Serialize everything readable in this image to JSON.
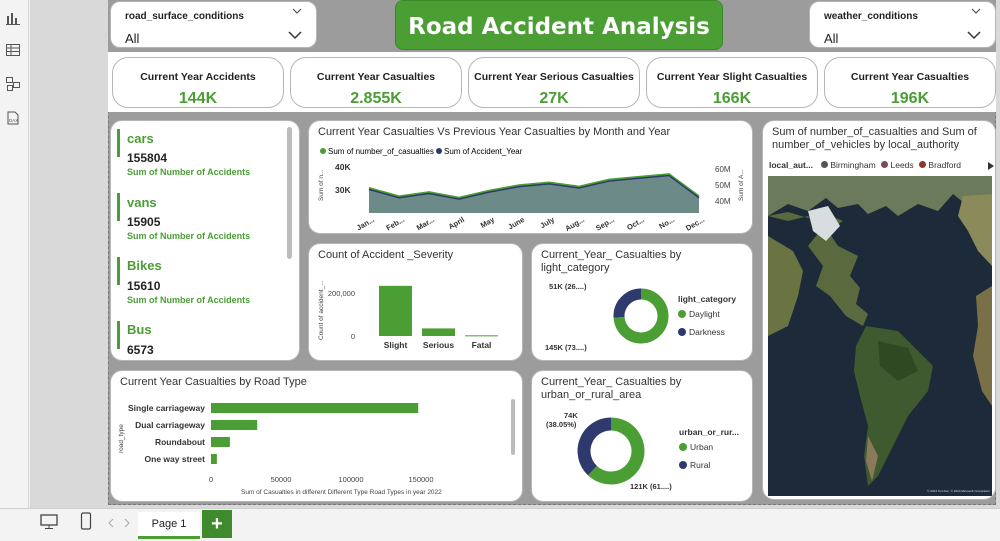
{
  "app": {
    "page_tab": "Page 1",
    "add_page": "+"
  },
  "filters": {
    "road_surface": {
      "label": "road_surface_conditions",
      "value": "All"
    },
    "weather": {
      "label": "weather_conditions",
      "value": "All"
    }
  },
  "title": "Road Accident Analysis",
  "kpis": [
    {
      "label": "Current Year Accidents",
      "value": "144K"
    },
    {
      "label": "Current Year Casualties",
      "value": "2.855K"
    },
    {
      "label": "Current Year Serious Casualties",
      "value": "27K"
    },
    {
      "label": "Current Year Slight Casualties",
      "value": "166K"
    },
    {
      "label": "Current Year Casualties",
      "value": "196K"
    }
  ],
  "vehicles": [
    {
      "name": "cars",
      "value": "155804",
      "sub": "Sum of Number of Accidents"
    },
    {
      "name": "vans",
      "value": "15905",
      "sub": "Sum of Number of Accidents"
    },
    {
      "name": "Bikes",
      "value": "15610",
      "sub": "Sum of Number of Accidents"
    },
    {
      "name": "Bus",
      "value": "6573"
    }
  ],
  "line_chart": {
    "title": "Current Year Casualties Vs Previous Year Casualties by Month and Year",
    "legend": [
      "Sum of number_of_casualties",
      "Sum of Accident_Year"
    ],
    "y_left_ticks": [
      "40K",
      "30K"
    ],
    "y_right_ticks": [
      "60M",
      "50M",
      "40M"
    ],
    "y_left_label": "Sum of n...",
    "y_right_label": "Sum of A...",
    "months": [
      "Jan...",
      "Feb...",
      "Mar...",
      "April",
      "May",
      "June",
      "July",
      "Aug...",
      "Sep...",
      "Oct...",
      "No...",
      "Dec..."
    ]
  },
  "severity_chart": {
    "title": "Count of Accident _Severity",
    "y_label": "Count of accident_...",
    "ticks": [
      "200,000",
      "0"
    ]
  },
  "light_chart": {
    "title": "Current_Year_ Casualties by light_category",
    "legend_title": "light_category",
    "label_top": "51K (26....)",
    "label_bottom": "145K (73....)"
  },
  "road_chart": {
    "title": "Current Year Casualties by Road Type",
    "y_label": "road_type",
    "x_ticks": [
      "0",
      "50000",
      "100000",
      "150000"
    ],
    "x_label": "Sum of Casualties in different Different Type Road Types in year 2022"
  },
  "urban_chart": {
    "title": "Current_Year_ Casualties by urban_or_rural_area",
    "legend_title": "urban_or_rur...",
    "label_top": "74K\n(38.05%)",
    "label_top_1": "74K",
    "label_top_2": "(38.05%)",
    "label_bottom": "121K (61....)"
  },
  "map": {
    "title": "Sum of number_of_casualties and Sum of number_of_vehicles by local_authority",
    "legend_title": "local_aut...",
    "legend": [
      {
        "name": "Birmingham",
        "color": "#555555"
      },
      {
        "name": "Leeds",
        "color": "#7a4b5a"
      },
      {
        "name": "Bradford",
        "color": "#8a3a2a"
      }
    ],
    "attribution": "© 2024 TomTom, © 2024 Microsoft Corporation"
  },
  "colors": {
    "accent": "#4a9e34",
    "dark": "#2e3a6e",
    "area": "#6b8a88"
  },
  "chart_data": [
    {
      "type": "area",
      "title": "Current Year Casualties Vs Previous Year Casualties by Month and Year",
      "x": [
        "Jan...",
        "Feb...",
        "Mar...",
        "April",
        "May",
        "June",
        "July",
        "Aug...",
        "Sep...",
        "Oct...",
        "No...",
        "Dec..."
      ],
      "series": [
        {
          "name": "Sum of number_of_casualties",
          "values": [
            33000,
            30000,
            31500,
            29500,
            32000,
            34000,
            35000,
            33500,
            36000,
            37000,
            38000,
            30000
          ]
        },
        {
          "name": "Sum of Accident_Year",
          "values": [
            32500,
            29500,
            31000,
            29000,
            31500,
            33500,
            34500,
            33000,
            35500,
            36500,
            37500,
            29500
          ]
        }
      ]
    },
    {
      "type": "bar",
      "title": "Count of Accident _Severity",
      "categories": [
        "Slight",
        "Serious",
        "Fatal"
      ],
      "values": [
        264000,
        40000,
        3500
      ],
      "ylim": [
        0,
        300000
      ]
    },
    {
      "type": "pie",
      "title": "Current_Year_ Casualties by light_category",
      "categories": [
        "Daylight",
        "Darkness"
      ],
      "values": [
        145,
        51
      ]
    },
    {
      "type": "bar",
      "title": "Current Year Casualties by Road Type",
      "categories": [
        "Single carriageway",
        "Dual carriageway",
        "Roundabout",
        "One way street"
      ],
      "values": [
        148000,
        33000,
        13500,
        4200
      ],
      "xlim": [
        0,
        200000
      ]
    },
    {
      "type": "pie",
      "title": "Current_Year_ Casualties by urban_or_rural_area",
      "categories": [
        "Urban",
        "Rural"
      ],
      "values": [
        121,
        74
      ]
    }
  ]
}
